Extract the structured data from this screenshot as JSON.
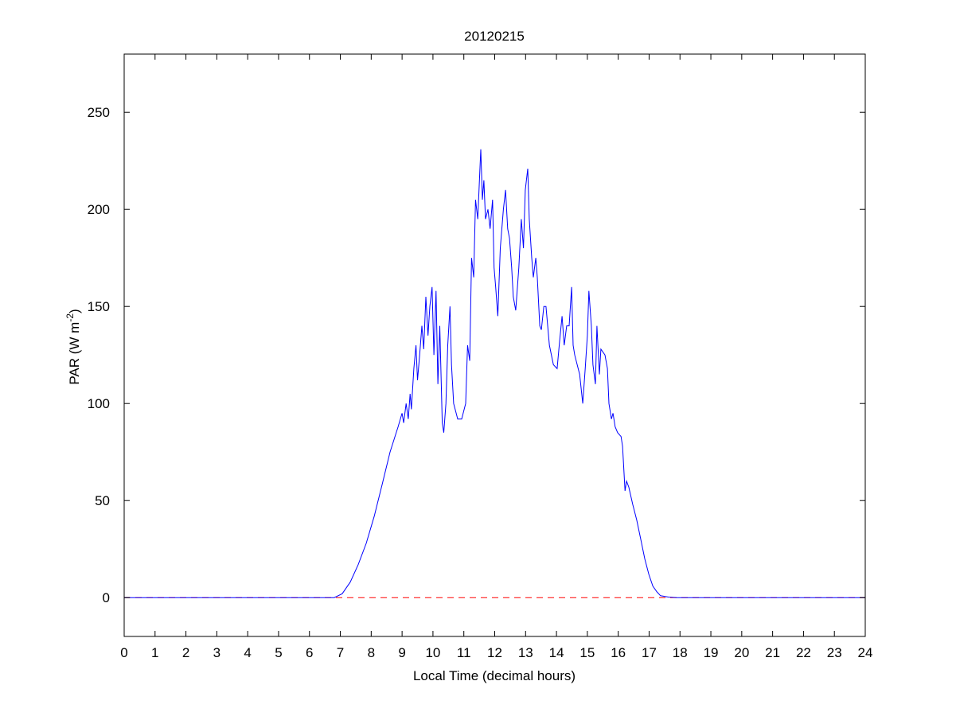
{
  "chart_data": {
    "type": "line",
    "title": "20120215",
    "xlabel": "Local Time (decimal hours)",
    "ylabel": "PAR (W m",
    "ylabel_superscript": "-2",
    "ylabel_suffix": ")",
    "xlim": [
      0,
      24
    ],
    "ylim": [
      -20,
      280
    ],
    "xticks": [
      0,
      1,
      2,
      3,
      4,
      5,
      6,
      7,
      8,
      9,
      10,
      11,
      12,
      13,
      14,
      15,
      16,
      17,
      18,
      19,
      20,
      21,
      22,
      23,
      24
    ],
    "yticks": [
      0,
      50,
      100,
      150,
      200,
      250
    ],
    "grid": false,
    "colors": {
      "series": "#0000ff",
      "reference": "#ff0000"
    },
    "series": [
      {
        "name": "PAR",
        "style": "solid",
        "points": [
          [
            0,
            0
          ],
          [
            6.8,
            0
          ],
          [
            7.06,
            2
          ],
          [
            7.32,
            8
          ],
          [
            7.58,
            17
          ],
          [
            7.84,
            28
          ],
          [
            8.1,
            42
          ],
          [
            8.35,
            58
          ],
          [
            8.61,
            75
          ],
          [
            8.87,
            88
          ],
          [
            9.0,
            95
          ],
          [
            9.05,
            90
          ],
          [
            9.13,
            100
          ],
          [
            9.2,
            92
          ],
          [
            9.26,
            105
          ],
          [
            9.3,
            97
          ],
          [
            9.38,
            118
          ],
          [
            9.45,
            130
          ],
          [
            9.5,
            112
          ],
          [
            9.57,
            125
          ],
          [
            9.64,
            140
          ],
          [
            9.7,
            128
          ],
          [
            9.77,
            155
          ],
          [
            9.84,
            135
          ],
          [
            9.9,
            150
          ],
          [
            9.97,
            160
          ],
          [
            10.03,
            125
          ],
          [
            10.1,
            158
          ],
          [
            10.16,
            110
          ],
          [
            10.22,
            140
          ],
          [
            10.3,
            90
          ],
          [
            10.35,
            85
          ],
          [
            10.42,
            100
          ],
          [
            10.48,
            130
          ],
          [
            10.55,
            150
          ],
          [
            10.6,
            120
          ],
          [
            10.67,
            100
          ],
          [
            10.8,
            92
          ],
          [
            10.93,
            92
          ],
          [
            11.06,
            100
          ],
          [
            11.12,
            130
          ],
          [
            11.19,
            122
          ],
          [
            11.25,
            175
          ],
          [
            11.32,
            165
          ],
          [
            11.38,
            205
          ],
          [
            11.45,
            195
          ],
          [
            11.55,
            231
          ],
          [
            11.6,
            205
          ],
          [
            11.65,
            215
          ],
          [
            11.7,
            195
          ],
          [
            11.78,
            200
          ],
          [
            11.85,
            190
          ],
          [
            11.93,
            205
          ],
          [
            11.98,
            170
          ],
          [
            12.03,
            160
          ],
          [
            12.1,
            145
          ],
          [
            12.18,
            180
          ],
          [
            12.28,
            200
          ],
          [
            12.35,
            210
          ],
          [
            12.42,
            190
          ],
          [
            12.48,
            185
          ],
          [
            12.55,
            170
          ],
          [
            12.6,
            155
          ],
          [
            12.68,
            148
          ],
          [
            12.78,
            170
          ],
          [
            12.86,
            195
          ],
          [
            12.93,
            180
          ],
          [
            12.99,
            210
          ],
          [
            13.07,
            221
          ],
          [
            13.12,
            195
          ],
          [
            13.2,
            175
          ],
          [
            13.25,
            165
          ],
          [
            13.33,
            175
          ],
          [
            13.38,
            165
          ],
          [
            13.46,
            140
          ],
          [
            13.51,
            138
          ],
          [
            13.59,
            150
          ],
          [
            13.66,
            150
          ],
          [
            13.77,
            130
          ],
          [
            13.9,
            120
          ],
          [
            14.02,
            118
          ],
          [
            14.1,
            132
          ],
          [
            14.18,
            145
          ],
          [
            14.25,
            130
          ],
          [
            14.33,
            140
          ],
          [
            14.41,
            140
          ],
          [
            14.49,
            160
          ],
          [
            14.54,
            130
          ],
          [
            14.59,
            125
          ],
          [
            14.67,
            120
          ],
          [
            14.75,
            115
          ],
          [
            14.85,
            100
          ],
          [
            14.93,
            118
          ],
          [
            15.0,
            135
          ],
          [
            15.05,
            158
          ],
          [
            15.13,
            140
          ],
          [
            15.18,
            120
          ],
          [
            15.26,
            110
          ],
          [
            15.31,
            140
          ],
          [
            15.39,
            115
          ],
          [
            15.44,
            128
          ],
          [
            15.57,
            125
          ],
          [
            15.65,
            118
          ],
          [
            15.7,
            100
          ],
          [
            15.78,
            92
          ],
          [
            15.83,
            95
          ],
          [
            15.9,
            88
          ],
          [
            15.98,
            85
          ],
          [
            16.09,
            83
          ],
          [
            16.14,
            78
          ],
          [
            16.22,
            55
          ],
          [
            16.27,
            60
          ],
          [
            16.34,
            57
          ],
          [
            16.47,
            48
          ],
          [
            16.6,
            40
          ],
          [
            16.73,
            30
          ],
          [
            16.86,
            20
          ],
          [
            16.99,
            12
          ],
          [
            17.12,
            6
          ],
          [
            17.25,
            3
          ],
          [
            17.37,
            1
          ],
          [
            17.63,
            0.3
          ],
          [
            17.9,
            0
          ],
          [
            24,
            0
          ]
        ]
      },
      {
        "name": "zero reference",
        "style": "dashed",
        "points": [
          [
            0,
            0
          ],
          [
            24,
            0
          ]
        ]
      }
    ]
  }
}
